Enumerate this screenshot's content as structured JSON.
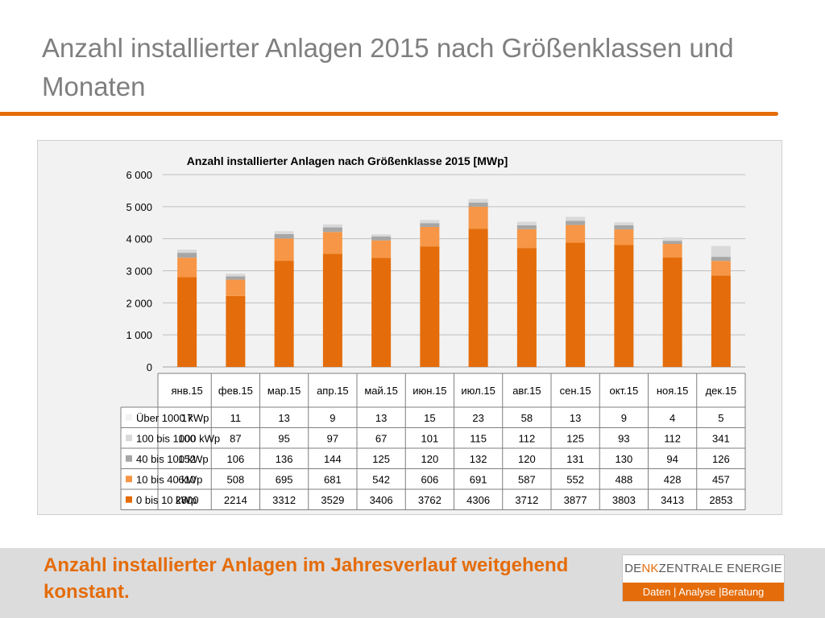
{
  "slide": {
    "title": "Anzahl installierter Anlagen 2015 nach Größenklassen und Monaten",
    "conclusion": "Anzahl installierter Anlagen im Jahresverlauf weitgehend konstant.",
    "accent_color": "#e46c0a"
  },
  "logo": {
    "name_part1": "DE",
    "name_part2": "NK",
    "name_part3": "ZENTRALE ENERGIE",
    "tagline": "Daten | Analyse |Beratung"
  },
  "chart_data": {
    "type": "bar",
    "stacked": true,
    "title": "Anzahl installierter Anlagen nach Größenklasse 2015 [MWp]",
    "categories": [
      "янв.15",
      "фев.15",
      "мар.15",
      "апр.15",
      "май.15",
      "июн.15",
      "июл.15",
      "авг.15",
      "сен.15",
      "окт.15",
      "ноя.15",
      "дек.15"
    ],
    "series": [
      {
        "name": "0 bis 10 kWp",
        "color": "#e46c0a",
        "values": [
          2800,
          2214,
          3312,
          3529,
          3406,
          3762,
          4306,
          3712,
          3877,
          3803,
          3413,
          2853
        ]
      },
      {
        "name": "10 bis 40 kWp",
        "color": "#f79646",
        "values": [
          610,
          508,
          695,
          681,
          542,
          606,
          691,
          587,
          552,
          488,
          428,
          457
        ]
      },
      {
        "name": "40 bis 100 kWp",
        "color": "#a6a6a6",
        "values": [
          152,
          106,
          136,
          144,
          125,
          120,
          132,
          120,
          131,
          130,
          94,
          126
        ]
      },
      {
        "name": "100 bis 1000 kWp",
        "color": "#d9d9d9",
        "values": [
          100,
          87,
          95,
          97,
          67,
          101,
          115,
          112,
          125,
          93,
          112,
          341
        ]
      },
      {
        "name": "Über 1000 kWp",
        "color": "#f2f2f2",
        "values": [
          17,
          11,
          13,
          9,
          13,
          15,
          23,
          58,
          13,
          9,
          4,
          5
        ]
      }
    ],
    "yticks": [
      "0",
      "1 000",
      "2 000",
      "3 000",
      "4 000",
      "5 000",
      "6 000"
    ],
    "ylim": [
      0,
      6000
    ],
    "grid": true,
    "legend": "data-table"
  }
}
